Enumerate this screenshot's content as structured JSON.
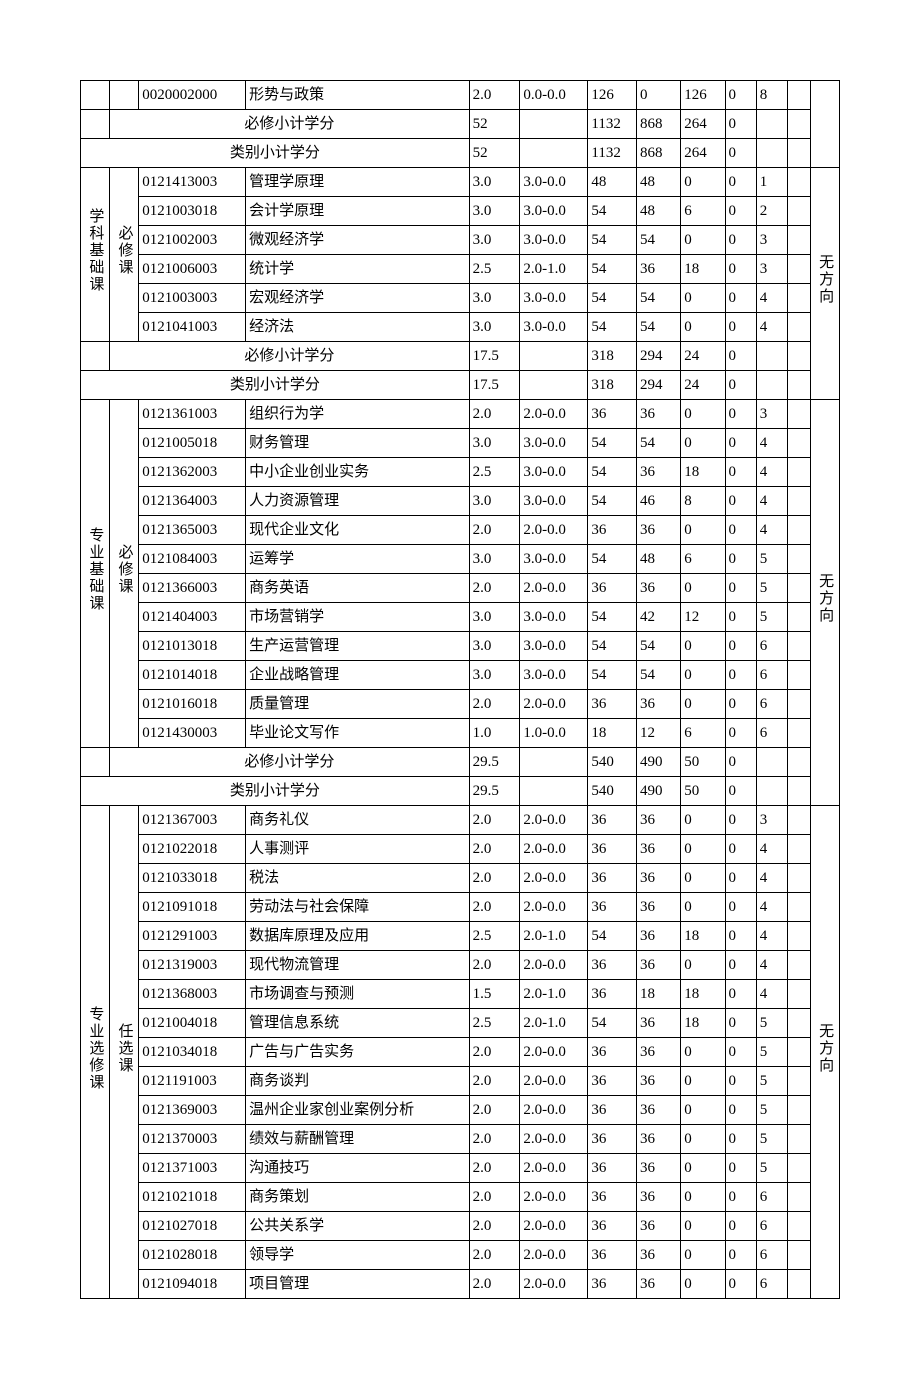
{
  "labels": {
    "req_subtotal": "必修小计学分",
    "cat_subtotal": "类别小计学分"
  },
  "sections": [
    {
      "cat": null,
      "sub": null,
      "dir": null,
      "rows": [
        {
          "code": "0020002000",
          "name": "形势与政策",
          "cred": "2.0",
          "rng": "0.0-0.0",
          "n1": "126",
          "n2": "0",
          "n3": "126",
          "n4": "0",
          "n5": "8",
          "n6": ""
        }
      ],
      "req_subtotal": {
        "cred": "52",
        "rng": "",
        "n1": "1132",
        "n2": "868",
        "n3": "264",
        "n4": "0",
        "n5": "",
        "n6": ""
      },
      "cat_subtotal": {
        "cred": "52",
        "rng": "",
        "n1": "1132",
        "n2": "868",
        "n3": "264",
        "n4": "0",
        "n5": "",
        "n6": ""
      }
    },
    {
      "cat": "学科基础课",
      "sub": "必修课",
      "dir": "无方向",
      "rows": [
        {
          "code": "0121413003",
          "name": "管理学原理",
          "cred": "3.0",
          "rng": "3.0-0.0",
          "n1": "48",
          "n2": "48",
          "n3": "0",
          "n4": "0",
          "n5": "1",
          "n6": ""
        },
        {
          "code": "0121003018",
          "name": "会计学原理",
          "cred": "3.0",
          "rng": "3.0-0.0",
          "n1": "54",
          "n2": "48",
          "n3": "6",
          "n4": "0",
          "n5": "2",
          "n6": ""
        },
        {
          "code": "0121002003",
          "name": "微观经济学",
          "cred": "3.0",
          "rng": "3.0-0.0",
          "n1": "54",
          "n2": "54",
          "n3": "0",
          "n4": "0",
          "n5": "3",
          "n6": ""
        },
        {
          "code": "0121006003",
          "name": "统计学",
          "cred": "2.5",
          "rng": "2.0-1.0",
          "n1": "54",
          "n2": "36",
          "n3": "18",
          "n4": "0",
          "n5": "3",
          "n6": ""
        },
        {
          "code": "0121003003",
          "name": "宏观经济学",
          "cred": "3.0",
          "rng": "3.0-0.0",
          "n1": "54",
          "n2": "54",
          "n3": "0",
          "n4": "0",
          "n5": "4",
          "n6": ""
        },
        {
          "code": "0121041003",
          "name": "经济法",
          "cred": "3.0",
          "rng": "3.0-0.0",
          "n1": "54",
          "n2": "54",
          "n3": "0",
          "n4": "0",
          "n5": "4",
          "n6": ""
        }
      ],
      "req_subtotal": {
        "cred": "17.5",
        "rng": "",
        "n1": "318",
        "n2": "294",
        "n3": "24",
        "n4": "0",
        "n5": "",
        "n6": ""
      },
      "cat_subtotal": {
        "cred": "17.5",
        "rng": "",
        "n1": "318",
        "n2": "294",
        "n3": "24",
        "n4": "0",
        "n5": "",
        "n6": ""
      }
    },
    {
      "cat": "专业基础课",
      "sub": "必修课",
      "dir": "无方向",
      "rows": [
        {
          "code": "0121361003",
          "name": "组织行为学",
          "cred": "2.0",
          "rng": "2.0-0.0",
          "n1": "36",
          "n2": "36",
          "n3": "0",
          "n4": "0",
          "n5": "3",
          "n6": ""
        },
        {
          "code": "0121005018",
          "name": "财务管理",
          "cred": "3.0",
          "rng": "3.0-0.0",
          "n1": "54",
          "n2": "54",
          "n3": "0",
          "n4": "0",
          "n5": "4",
          "n6": ""
        },
        {
          "code": "0121362003",
          "name": "中小企业创业实务",
          "cred": "2.5",
          "rng": "3.0-0.0",
          "n1": "54",
          "n2": "36",
          "n3": "18",
          "n4": "0",
          "n5": "4",
          "n6": ""
        },
        {
          "code": "0121364003",
          "name": "人力资源管理",
          "cred": "3.0",
          "rng": "3.0-0.0",
          "n1": "54",
          "n2": "46",
          "n3": "8",
          "n4": "0",
          "n5": "4",
          "n6": ""
        },
        {
          "code": "0121365003",
          "name": "现代企业文化",
          "cred": "2.0",
          "rng": "2.0-0.0",
          "n1": "36",
          "n2": "36",
          "n3": "0",
          "n4": "0",
          "n5": "4",
          "n6": ""
        },
        {
          "code": "0121084003",
          "name": "运筹学",
          "cred": "3.0",
          "rng": "3.0-0.0",
          "n1": "54",
          "n2": "48",
          "n3": "6",
          "n4": "0",
          "n5": "5",
          "n6": ""
        },
        {
          "code": "0121366003",
          "name": "商务英语",
          "cred": "2.0",
          "rng": "2.0-0.0",
          "n1": "36",
          "n2": "36",
          "n3": "0",
          "n4": "0",
          "n5": "5",
          "n6": ""
        },
        {
          "code": "0121404003",
          "name": "市场营销学",
          "cred": "3.0",
          "rng": "3.0-0.0",
          "n1": "54",
          "n2": "42",
          "n3": "12",
          "n4": "0",
          "n5": "5",
          "n6": ""
        },
        {
          "code": "0121013018",
          "name": "生产运营管理",
          "cred": "3.0",
          "rng": "3.0-0.0",
          "n1": "54",
          "n2": "54",
          "n3": "0",
          "n4": "0",
          "n5": "6",
          "n6": ""
        },
        {
          "code": "0121014018",
          "name": "企业战略管理",
          "cred": "3.0",
          "rng": "3.0-0.0",
          "n1": "54",
          "n2": "54",
          "n3": "0",
          "n4": "0",
          "n5": "6",
          "n6": ""
        },
        {
          "code": "0121016018",
          "name": "质量管理",
          "cred": "2.0",
          "rng": "2.0-0.0",
          "n1": "36",
          "n2": "36",
          "n3": "0",
          "n4": "0",
          "n5": "6",
          "n6": ""
        },
        {
          "code": "0121430003",
          "name": "毕业论文写作",
          "cred": "1.0",
          "rng": "1.0-0.0",
          "n1": "18",
          "n2": "12",
          "n3": "6",
          "n4": "0",
          "n5": "6",
          "n6": ""
        }
      ],
      "req_subtotal": {
        "cred": "29.5",
        "rng": "",
        "n1": "540",
        "n2": "490",
        "n3": "50",
        "n4": "0",
        "n5": "",
        "n6": ""
      },
      "cat_subtotal": {
        "cred": "29.5",
        "rng": "",
        "n1": "540",
        "n2": "490",
        "n3": "50",
        "n4": "0",
        "n5": "",
        "n6": ""
      }
    },
    {
      "cat": "专业选修课",
      "sub": "任选课",
      "dir": "无方向",
      "rows": [
        {
          "code": "0121367003",
          "name": "商务礼仪",
          "cred": "2.0",
          "rng": "2.0-0.0",
          "n1": "36",
          "n2": "36",
          "n3": "0",
          "n4": "0",
          "n5": "3",
          "n6": ""
        },
        {
          "code": "0121022018",
          "name": "人事测评",
          "cred": "2.0",
          "rng": "2.0-0.0",
          "n1": "36",
          "n2": "36",
          "n3": "0",
          "n4": "0",
          "n5": "4",
          "n6": ""
        },
        {
          "code": "0121033018",
          "name": "税法",
          "cred": "2.0",
          "rng": "2.0-0.0",
          "n1": "36",
          "n2": "36",
          "n3": "0",
          "n4": "0",
          "n5": "4",
          "n6": ""
        },
        {
          "code": "0121091018",
          "name": "劳动法与社会保障",
          "cred": "2.0",
          "rng": "2.0-0.0",
          "n1": "36",
          "n2": "36",
          "n3": "0",
          "n4": "0",
          "n5": "4",
          "n6": ""
        },
        {
          "code": "0121291003",
          "name": "数据库原理及应用",
          "cred": "2.5",
          "rng": "2.0-1.0",
          "n1": "54",
          "n2": "36",
          "n3": "18",
          "n4": "0",
          "n5": "4",
          "n6": ""
        },
        {
          "code": "0121319003",
          "name": "现代物流管理",
          "cred": "2.0",
          "rng": "2.0-0.0",
          "n1": "36",
          "n2": "36",
          "n3": "0",
          "n4": "0",
          "n5": "4",
          "n6": ""
        },
        {
          "code": "0121368003",
          "name": "市场调查与预测",
          "cred": "1.5",
          "rng": "2.0-1.0",
          "n1": "36",
          "n2": "18",
          "n3": "18",
          "n4": "0",
          "n5": "4",
          "n6": ""
        },
        {
          "code": "0121004018",
          "name": "管理信息系统",
          "cred": "2.5",
          "rng": "2.0-1.0",
          "n1": "54",
          "n2": "36",
          "n3": "18",
          "n4": "0",
          "n5": "5",
          "n6": ""
        },
        {
          "code": "0121034018",
          "name": "广告与广告实务",
          "cred": "2.0",
          "rng": "2.0-0.0",
          "n1": "36",
          "n2": "36",
          "n3": "0",
          "n4": "0",
          "n5": "5",
          "n6": ""
        },
        {
          "code": "0121191003",
          "name": "商务谈判",
          "cred": "2.0",
          "rng": "2.0-0.0",
          "n1": "36",
          "n2": "36",
          "n3": "0",
          "n4": "0",
          "n5": "5",
          "n6": ""
        },
        {
          "code": "0121369003",
          "name": "温州企业家创业案例分析",
          "cred": "2.0",
          "rng": "2.0-0.0",
          "n1": "36",
          "n2": "36",
          "n3": "0",
          "n4": "0",
          "n5": "5",
          "n6": ""
        },
        {
          "code": "0121370003",
          "name": "绩效与薪酬管理",
          "cred": "2.0",
          "rng": "2.0-0.0",
          "n1": "36",
          "n2": "36",
          "n3": "0",
          "n4": "0",
          "n5": "5",
          "n6": ""
        },
        {
          "code": "0121371003",
          "name": "沟通技巧",
          "cred": "2.0",
          "rng": "2.0-0.0",
          "n1": "36",
          "n2": "36",
          "n3": "0",
          "n4": "0",
          "n5": "5",
          "n6": ""
        },
        {
          "code": "0121021018",
          "name": "商务策划",
          "cred": "2.0",
          "rng": "2.0-0.0",
          "n1": "36",
          "n2": "36",
          "n3": "0",
          "n4": "0",
          "n5": "6",
          "n6": ""
        },
        {
          "code": "0121027018",
          "name": "公共关系学",
          "cred": "2.0",
          "rng": "2.0-0.0",
          "n1": "36",
          "n2": "36",
          "n3": "0",
          "n4": "0",
          "n5": "6",
          "n6": ""
        },
        {
          "code": "0121028018",
          "name": "领导学",
          "cred": "2.0",
          "rng": "2.0-0.0",
          "n1": "36",
          "n2": "36",
          "n3": "0",
          "n4": "0",
          "n5": "6",
          "n6": ""
        },
        {
          "code": "0121094018",
          "name": "项目管理",
          "cred": "2.0",
          "rng": "2.0-0.0",
          "n1": "36",
          "n2": "36",
          "n3": "0",
          "n4": "0",
          "n5": "6",
          "n6": ""
        }
      ],
      "req_subtotal": null,
      "cat_subtotal": null
    }
  ]
}
